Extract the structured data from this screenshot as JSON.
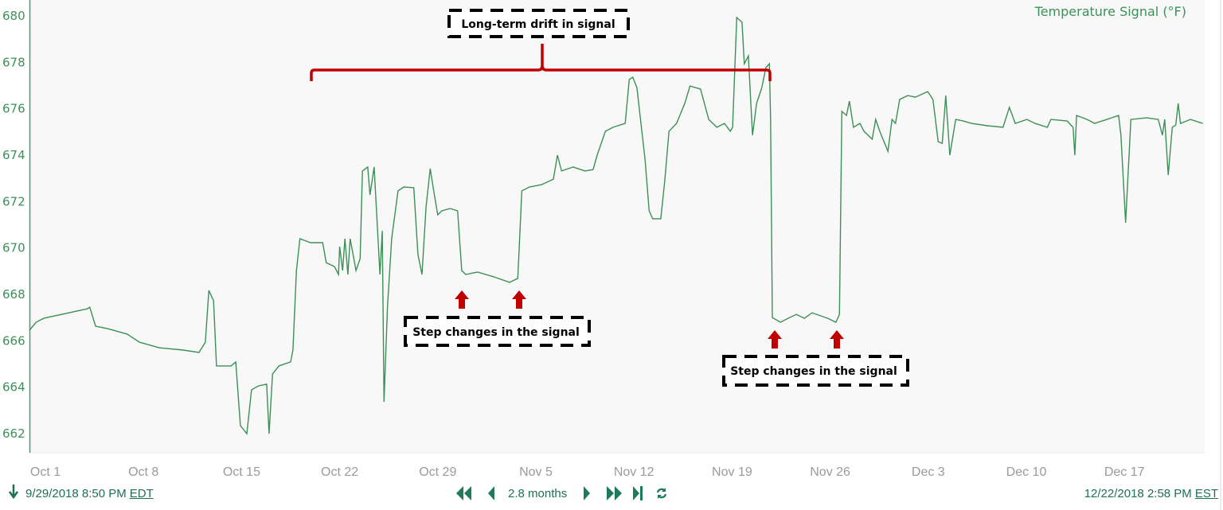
{
  "chart_data": {
    "type": "line",
    "title": "Temperature Signal (°F)",
    "xlabel": "",
    "ylabel": "",
    "ylim": [
      661.5,
      680.5
    ],
    "yticks": [
      "662",
      "664",
      "666",
      "668",
      "670",
      "672",
      "674",
      "676",
      "678",
      "680"
    ],
    "xticks": [
      "Oct 1",
      "Oct 8",
      "Oct 15",
      "Oct 22",
      "Oct 29",
      "Nov 5",
      "Nov 12",
      "Nov 19",
      "Nov 26",
      "Dec 3",
      "Dec 10",
      "Dec 17"
    ],
    "xtick_dates": [
      "2018-10-01",
      "2018-10-08",
      "2018-10-15",
      "2018-10-22",
      "2018-10-29",
      "2018-11-05",
      "2018-11-12",
      "2018-11-19",
      "2018-11-26",
      "2018-12-03",
      "2018-12-10",
      "2018-12-17"
    ],
    "grid": false,
    "line_color": "#3d8f57",
    "series": [
      {
        "points": [
          [
            "2018-09-29T20:50",
            666.46
          ],
          [
            "2018-09-30T08:00",
            666.8
          ],
          [
            "2018-09-30T21:00",
            666.97
          ],
          [
            "2018-10-04T00:00",
            667.38
          ],
          [
            "2018-10-04T04:00",
            667.45
          ],
          [
            "2018-10-04T14:00",
            666.63
          ],
          [
            "2018-10-05T10:00",
            666.53
          ],
          [
            "2018-10-06T20:00",
            666.29
          ],
          [
            "2018-10-07T17:00",
            665.94
          ],
          [
            "2018-10-09T03:00",
            665.7
          ],
          [
            "2018-10-10T20:00",
            665.6
          ],
          [
            "2018-10-11T23:00",
            665.5
          ],
          [
            "2018-10-12T10:00",
            665.94
          ],
          [
            "2018-10-12T16:00",
            668.17
          ],
          [
            "2018-10-13T00:00",
            667.73
          ],
          [
            "2018-10-13T05:00",
            664.92
          ],
          [
            "2018-10-14T06:00",
            664.92
          ],
          [
            "2018-10-14T14:00",
            665.09
          ],
          [
            "2018-10-14T22:00",
            662.35
          ],
          [
            "2018-10-15T09:00",
            662.0
          ],
          [
            "2018-10-15T17:00",
            663.89
          ],
          [
            "2018-10-16T05:00",
            664.06
          ],
          [
            "2018-10-16T19:00",
            664.13
          ],
          [
            "2018-10-16T23:00",
            662.0
          ],
          [
            "2018-10-17T05:00",
            664.57
          ],
          [
            "2018-10-17T16:00",
            664.92
          ],
          [
            "2018-10-18T12:00",
            665.09
          ],
          [
            "2018-10-18T16:00",
            665.6
          ],
          [
            "2018-10-18T22:00",
            669.03
          ],
          [
            "2018-10-19T04:00",
            670.4
          ],
          [
            "2018-10-19T22:00",
            670.23
          ],
          [
            "2018-10-20T19:00",
            670.23
          ],
          [
            "2018-10-21T01:00",
            669.37
          ],
          [
            "2018-10-21T15:00",
            669.2
          ],
          [
            "2018-10-21T22:00",
            668.86
          ],
          [
            "2018-10-22T00:00",
            670.06
          ],
          [
            "2018-10-22T05:00",
            669.03
          ],
          [
            "2018-10-22T09:00",
            670.4
          ],
          [
            "2018-10-22T14:00",
            668.86
          ],
          [
            "2018-10-22T18:00",
            670.4
          ],
          [
            "2018-10-23T04:00",
            669.03
          ],
          [
            "2018-10-23T11:00",
            669.54
          ],
          [
            "2018-10-23T15:00",
            673.32
          ],
          [
            "2018-10-24T00:00",
            673.49
          ],
          [
            "2018-10-24T04:00",
            672.29
          ],
          [
            "2018-10-24T11:00",
            673.49
          ],
          [
            "2018-10-24T21:00",
            668.86
          ],
          [
            "2018-10-25T01:00",
            670.74
          ],
          [
            "2018-10-25T04:00",
            663.37
          ],
          [
            "2018-10-25T10:00",
            667.49
          ],
          [
            "2018-10-25T17:00",
            670.4
          ],
          [
            "2018-10-26T04:00",
            672.46
          ],
          [
            "2018-10-26T14:00",
            672.63
          ],
          [
            "2018-10-27T07:00",
            672.6
          ],
          [
            "2018-10-27T14:00",
            669.72
          ],
          [
            "2018-10-27T21:00",
            668.86
          ],
          [
            "2018-10-28T04:00",
            671.77
          ],
          [
            "2018-10-28T11:00",
            673.42
          ],
          [
            "2018-10-28T17:00",
            672.46
          ],
          [
            "2018-10-29T00:00",
            671.43
          ],
          [
            "2018-10-29T07:00",
            671.6
          ],
          [
            "2018-10-29T21:00",
            671.7
          ],
          [
            "2018-10-30T10:00",
            671.6
          ],
          [
            "2018-10-30T17:00",
            669.03
          ],
          [
            "2018-10-31T00:00",
            668.86
          ],
          [
            "2018-10-31T20:00",
            668.96
          ],
          [
            "2018-11-02T00:00",
            668.76
          ],
          [
            "2018-11-03T03:00",
            668.52
          ],
          [
            "2018-11-03T17:00",
            668.69
          ],
          [
            "2018-11-04T00:00",
            672.46
          ],
          [
            "2018-11-04T13:00",
            672.63
          ],
          [
            "2018-11-05T10:00",
            672.73
          ],
          [
            "2018-11-06T06:00",
            672.97
          ],
          [
            "2018-11-06T13:00",
            674.0
          ],
          [
            "2018-11-06T20:00",
            673.32
          ],
          [
            "2018-11-07T16:00",
            673.49
          ],
          [
            "2018-11-08T12:00",
            673.32
          ],
          [
            "2018-11-09T02:00",
            673.38
          ],
          [
            "2018-11-09T09:00",
            674.0
          ],
          [
            "2018-11-09T23:00",
            675.03
          ],
          [
            "2018-11-10T12:00",
            675.2
          ],
          [
            "2018-11-11T09:00",
            675.37
          ],
          [
            "2018-11-11T16:00",
            677.26
          ],
          [
            "2018-11-11T22:00",
            677.36
          ],
          [
            "2018-11-12T05:00",
            676.91
          ],
          [
            "2018-11-12T12:00",
            675.37
          ],
          [
            "2018-11-12T19:00",
            673.83
          ],
          [
            "2018-11-13T02:00",
            671.6
          ],
          [
            "2018-11-13T08:00",
            671.26
          ],
          [
            "2018-11-13T22:00",
            671.26
          ],
          [
            "2018-11-14T05:00",
            672.97
          ],
          [
            "2018-11-14T12:00",
            675.03
          ],
          [
            "2018-11-15T01:00",
            675.37
          ],
          [
            "2018-11-15T15:00",
            676.23
          ],
          [
            "2018-11-16T00:00",
            676.98
          ],
          [
            "2018-11-16T18:00",
            676.85
          ],
          [
            "2018-11-17T08:00",
            675.54
          ],
          [
            "2018-11-17T22:00",
            675.2
          ],
          [
            "2018-11-18T11:00",
            675.37
          ],
          [
            "2018-11-18T21:00",
            675.03
          ],
          [
            "2018-11-19T01:00",
            675.2
          ],
          [
            "2018-11-19T08:00",
            679.93
          ],
          [
            "2018-11-19T17:00",
            679.73
          ],
          [
            "2018-11-19T21:00",
            677.94
          ],
          [
            "2018-11-20T04:00",
            678.28
          ],
          [
            "2018-11-20T11:00",
            674.86
          ],
          [
            "2018-11-20T18:00",
            676.23
          ],
          [
            "2018-11-21T03:00",
            676.91
          ],
          [
            "2018-11-21T10:00",
            677.77
          ],
          [
            "2018-11-21T16:00",
            677.94
          ],
          [
            "2018-11-21T18:00",
            675.54
          ],
          [
            "2018-11-21T21:00",
            667.0
          ],
          [
            "2018-11-22T11:00",
            666.8
          ],
          [
            "2018-11-23T00:00",
            666.97
          ],
          [
            "2018-11-23T14:00",
            667.14
          ],
          [
            "2018-11-24T04:00",
            666.97
          ],
          [
            "2018-11-24T17:00",
            667.21
          ],
          [
            "2018-11-25T20:00",
            666.97
          ],
          [
            "2018-11-26T10:00",
            666.8
          ],
          [
            "2018-11-26T16:00",
            667.14
          ],
          [
            "2018-11-26T20:00",
            675.89
          ],
          [
            "2018-11-27T04:00",
            675.71
          ],
          [
            "2018-11-27T09:00",
            676.33
          ],
          [
            "2018-11-27T16:00",
            675.2
          ],
          [
            "2018-11-28T03:00",
            675.37
          ],
          [
            "2018-11-28T10:00",
            675.03
          ],
          [
            "2018-11-29T00:00",
            674.69
          ],
          [
            "2018-11-29T06:00",
            675.54
          ],
          [
            "2018-11-29T13:00",
            675.03
          ],
          [
            "2018-11-30T03:00",
            674.17
          ],
          [
            "2018-11-30T10:00",
            675.54
          ],
          [
            "2018-11-30T16:00",
            675.37
          ],
          [
            "2018-11-30T23:00",
            676.4
          ],
          [
            "2018-12-01T13:00",
            676.57
          ],
          [
            "2018-12-02T02:00",
            676.5
          ],
          [
            "2018-12-02T23:00",
            676.74
          ],
          [
            "2018-12-03T08:00",
            676.4
          ],
          [
            "2018-12-03T17:00",
            674.58
          ],
          [
            "2018-12-04T00:00",
            674.51
          ],
          [
            "2018-12-04T06:00",
            676.57
          ],
          [
            "2018-12-04T13:00",
            674.0
          ],
          [
            "2018-12-04T23:00",
            675.54
          ],
          [
            "2018-12-05T12:00",
            675.47
          ],
          [
            "2018-12-06T02:00",
            675.37
          ],
          [
            "2018-12-07T05:00",
            675.27
          ],
          [
            "2018-12-08T08:00",
            675.2
          ],
          [
            "2018-12-08T19:00",
            676.06
          ],
          [
            "2018-12-09T05:00",
            675.37
          ],
          [
            "2018-12-10T01:00",
            675.54
          ],
          [
            "2018-12-10T15:00",
            675.37
          ],
          [
            "2018-12-11T12:00",
            675.2
          ],
          [
            "2018-12-11T18:00",
            675.54
          ],
          [
            "2018-12-12T22:00",
            675.47
          ],
          [
            "2018-12-13T08:00",
            675.2
          ],
          [
            "2018-12-13T11:00",
            674.0
          ],
          [
            "2018-12-13T14:00",
            675.71
          ],
          [
            "2018-12-14T08:00",
            675.54
          ],
          [
            "2018-12-14T21:00",
            675.37
          ],
          [
            "2018-12-15T18:00",
            675.54
          ],
          [
            "2018-12-16T14:00",
            675.71
          ],
          [
            "2018-12-16T18:00",
            674.86
          ],
          [
            "2018-12-17T02:00",
            671.09
          ],
          [
            "2018-12-17T11:00",
            675.54
          ],
          [
            "2018-12-18T14:00",
            675.61
          ],
          [
            "2018-12-19T10:00",
            675.54
          ],
          [
            "2018-12-19T17:00",
            674.86
          ],
          [
            "2018-12-19T21:00",
            675.54
          ],
          [
            "2018-12-20T03:00",
            673.14
          ],
          [
            "2018-12-20T10:00",
            675.2
          ],
          [
            "2018-12-20T16:00",
            675.3
          ],
          [
            "2018-12-20T20:00",
            676.23
          ],
          [
            "2018-12-21T00:00",
            675.37
          ],
          [
            "2018-12-21T17:00",
            675.54
          ],
          [
            "2018-12-22T14:00",
            675.37
          ]
        ]
      }
    ],
    "annotations": {
      "drift_label": "Long-term drift in signal",
      "step_label_1": "Step changes in the signal",
      "step_label_2": "Step changes in the signal",
      "bracket_color": "#c00000",
      "arrow_color": "#c00000"
    }
  },
  "footer": {
    "start_time": "9/29/2018 8:50 PM",
    "start_tz": "EDT",
    "range_label": "2.8 months",
    "end_time": "12/22/2018 2:58 PM",
    "end_tz": "EST",
    "icons": [
      "download-arrow-icon",
      "rewind-icon",
      "step-back-icon",
      "step-forward-icon",
      "fast-forward-icon",
      "jump-to-end-icon",
      "refresh-icon"
    ]
  }
}
